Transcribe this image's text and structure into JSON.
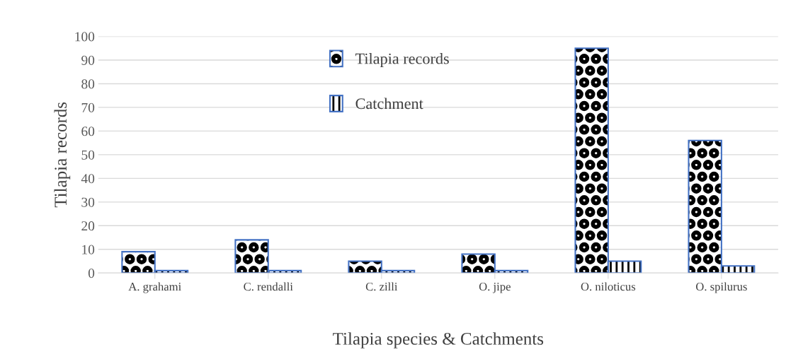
{
  "chart_data": {
    "type": "bar",
    "categories": [
      "A. grahami",
      "C. rendalli",
      "C. zilli",
      "O. jipe",
      "O. niloticus",
      "O. spilurus"
    ],
    "series": [
      {
        "name": "Tilapia records",
        "color": "#4472c4",
        "values": [
          9,
          14,
          5,
          8,
          95,
          56
        ]
      },
      {
        "name": "Catchment",
        "color": "#4472c4",
        "values": [
          1,
          1,
          1,
          1,
          5,
          3
        ]
      }
    ],
    "xlabel": "Tilapia species & Catchments",
    "ylabel": "Tilapia records",
    "ylim": [
      0,
      100
    ],
    "yticks": [
      0,
      10,
      20,
      30,
      40,
      50,
      60,
      70,
      80,
      90,
      100
    ],
    "grid": "y",
    "legend": "top"
  }
}
